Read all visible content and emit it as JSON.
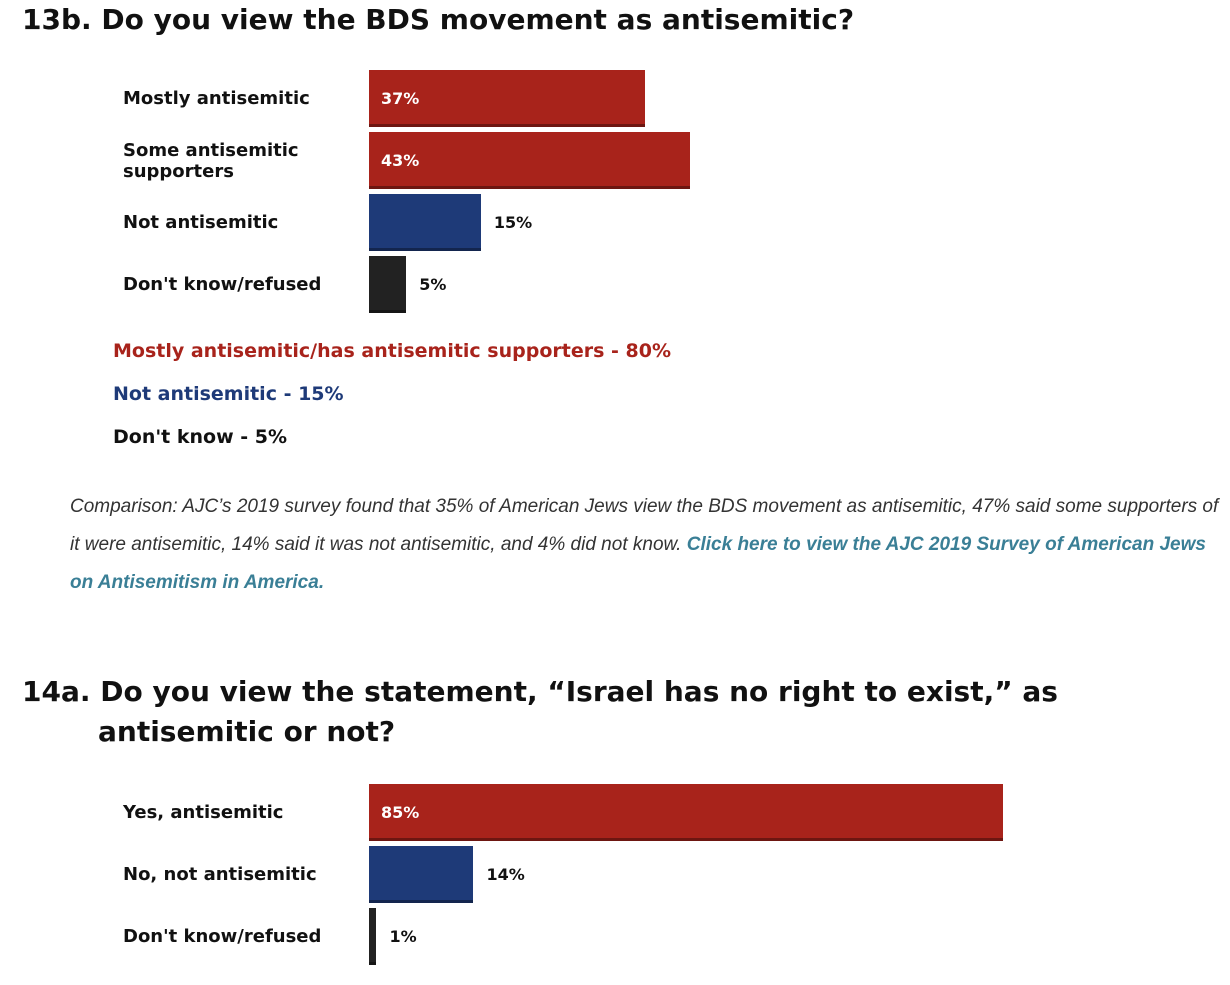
{
  "chart_data": [
    {
      "type": "bar",
      "orientation": "horizontal",
      "title": "13b. Do you view the BDS movement as antisemitic?",
      "categories": [
        "Mostly antisemitic",
        "Some antisemitic supporters",
        "Not antisemitic",
        "Don't know/refused"
      ],
      "values": [
        37,
        43,
        15,
        5
      ],
      "value_labels": [
        "37%",
        "43%",
        "15%",
        "5%"
      ],
      "colors": [
        "#a8231b",
        "#a8231b",
        "#1e3a78",
        "#222222"
      ],
      "xlim": [
        0,
        100
      ],
      "annotations": [
        {
          "text": "Mostly antisemitic/has antisemitic supporters - 80%",
          "color": "#a8231b"
        },
        {
          "text": "Not antisemitic - 15%",
          "color": "#1e3a78"
        },
        {
          "text": "Don't know - 5%",
          "color": "#111111"
        }
      ],
      "note": "Comparison: AJC’s 2019 survey found that 35% of American Jews view the BDS movement as antisemitic, 47% said some supporters of it were antisemitic, 14% said it was not antisemitic, and 4% did not know.",
      "link": "Click here to view the AJC 2019 Survey of American Jews on Antisemitism in America."
    },
    {
      "type": "bar",
      "orientation": "horizontal",
      "title": "14a. Do you view the statement, “Israel has no right to exist,” as antisemitic or not?",
      "categories": [
        "Yes, antisemitic",
        "No, not antisemitic",
        "Don't know/refused"
      ],
      "values": [
        85,
        14,
        1
      ],
      "value_labels": [
        "85%",
        "14%",
        "1%"
      ],
      "colors": [
        "#a8231b",
        "#1e3a78",
        "#222222"
      ],
      "xlim": [
        0,
        100
      ]
    }
  ]
}
